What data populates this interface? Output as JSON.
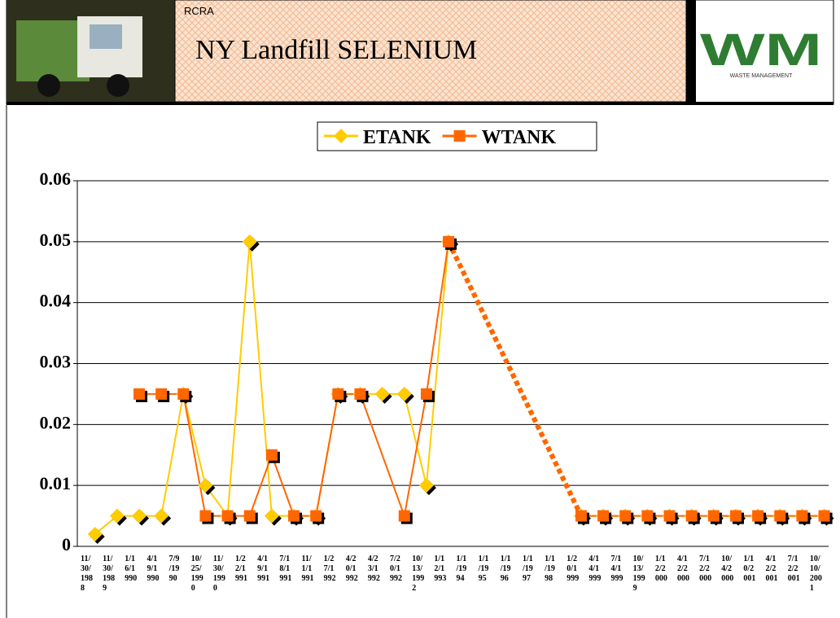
{
  "header": {
    "label": "RCRA",
    "logo": "WM",
    "logo_caption": "WASTE MANAGEMENT"
  },
  "chart_data": {
    "type": "line",
    "title": "NY Landfill SELENIUM",
    "categories": [
      "11/30/1988",
      "11/30/1989",
      "1/16/1990",
      "4/19/1990",
      "7/9/1990",
      "10/25/1990",
      "11/30/1990",
      "1/22/1991",
      "4/19/1991",
      "7/18/1991",
      "11/1/1991",
      "1/27/1992",
      "4/20/1992",
      "4/23/1992",
      "7/20/1992",
      "10/13/1992",
      "1/12/1993",
      "1/1/1994",
      "1/1/1995",
      "1/1/1996",
      "1/1/1997",
      "1/1/1998",
      "1/20/1999",
      "4/14/1999",
      "7/14/1999",
      "10/13/1999",
      "1/12/2000",
      "4/12/2000",
      "7/12/2000",
      "10/4/2000",
      "1/10/2001",
      "4/12/2001",
      "7/12/2001",
      "10/10/2001"
    ],
    "series": [
      {
        "name": "ETANK",
        "color": "#ffcc00",
        "marker": "diamond",
        "values": [
          0.002,
          0.005,
          0.005,
          0.005,
          0.025,
          0.01,
          0.005,
          0.05,
          0.005,
          0.005,
          0.005,
          0.025,
          0.025,
          0.025,
          0.025,
          0.01,
          0.05,
          null,
          null,
          null,
          null,
          null,
          0.005,
          0.005,
          0.005,
          0.005,
          0.005,
          0.005,
          0.005,
          0.005,
          0.005,
          0.005,
          0.005,
          0.005
        ]
      },
      {
        "name": "WTANK",
        "color": "#ff6600",
        "marker": "square",
        "values": [
          null,
          null,
          0.025,
          0.025,
          0.025,
          0.005,
          0.005,
          0.005,
          0.015,
          0.005,
          0.005,
          0.025,
          0.025,
          null,
          0.005,
          0.025,
          0.05,
          null,
          null,
          null,
          null,
          null,
          0.005,
          0.005,
          0.005,
          0.005,
          0.005,
          0.005,
          0.005,
          0.005,
          0.005,
          0.005,
          0.005,
          0.005
        ]
      }
    ],
    "ylim": [
      0,
      0.06
    ],
    "yticks": [
      0,
      0.01,
      0.02,
      0.03,
      0.04,
      0.05,
      0.06
    ],
    "grid": true,
    "legend": "top"
  }
}
